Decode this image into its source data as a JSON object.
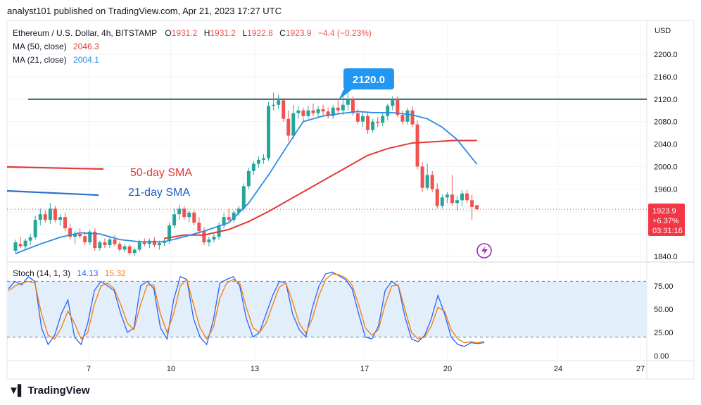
{
  "header": {
    "text": "analyst101 published on TradingView.com, Apr 21, 2023 17:27 UTC"
  },
  "legend": {
    "symbol": "Ethereum / U.S. Dollar, 4h, BITSTAMP",
    "o_label": "O",
    "o_value": "1931.2",
    "h_label": "H",
    "h_value": "1931.2",
    "l_label": "L",
    "l_value": "1922.8",
    "c_label": "C",
    "c_value": "1923.9",
    "change": "−4.4 (−0.23%)",
    "ma50_label": "MA (50, close)",
    "ma50_value": "2046.3",
    "ma21_label": "MA (21, close)",
    "ma21_value": "2004.1"
  },
  "stoch_legend": {
    "label": "Stoch (14, 1, 3)",
    "k_value": "14.13",
    "d_value": "15.32"
  },
  "price_axis": {
    "currency": "USD",
    "ticks": [
      "2200.0",
      "2160.0",
      "2120.0",
      "2080.0",
      "2040.0",
      "2000.0",
      "1960.0",
      "1840.0"
    ]
  },
  "stoch_axis": {
    "ticks": [
      "75.00",
      "50.00",
      "25.00",
      "0.00"
    ]
  },
  "time_axis": {
    "ticks": [
      "7",
      "10",
      "13",
      "17",
      "20",
      "24",
      "27"
    ]
  },
  "price_badge": {
    "price": "1923.9",
    "change": "+6.37%",
    "countdown": "03:31:16"
  },
  "callout": {
    "text": "2120.0"
  },
  "annotations": {
    "sma50": "50-day SMA",
    "sma21": "21-day SMA"
  },
  "colors": {
    "up": "#26a69a",
    "down": "#ef5350",
    "ma50": "#e53935",
    "ma21": "#2a8be6",
    "sma21_text": "#1f5fc2",
    "stoch_k": "#2962ff",
    "stoch_d": "#f57c00",
    "band": "#e3eefb",
    "callout": "#2196f3",
    "badge": "#f23645",
    "flash": "#9c27b0",
    "hline": "#0f3a3a"
  },
  "branding": {
    "logo_text": "TradingView"
  },
  "chart_data": {
    "type": "candlestick",
    "title": "Ethereum / U.S. Dollar, 4h, BITSTAMP",
    "ylabel": "USD",
    "ylim": [
      1830,
      2240
    ],
    "x_ticks": [
      "7",
      "10",
      "13",
      "17",
      "20",
      "24",
      "27"
    ],
    "horizontal_line": 2120.0,
    "last_price": 1923.9,
    "grid": true,
    "candles": [
      {
        "o": 1850,
        "h": 1870,
        "l": 1845,
        "c": 1865
      },
      {
        "o": 1862,
        "h": 1875,
        "l": 1855,
        "c": 1858
      },
      {
        "o": 1858,
        "h": 1872,
        "l": 1852,
        "c": 1868
      },
      {
        "o": 1868,
        "h": 1880,
        "l": 1860,
        "c": 1874
      },
      {
        "o": 1874,
        "h": 1912,
        "l": 1870,
        "c": 1905
      },
      {
        "o": 1905,
        "h": 1925,
        "l": 1895,
        "c": 1915
      },
      {
        "o": 1915,
        "h": 1922,
        "l": 1900,
        "c": 1905
      },
      {
        "o": 1905,
        "h": 1935,
        "l": 1898,
        "c": 1925
      },
      {
        "o": 1925,
        "h": 1930,
        "l": 1900,
        "c": 1905
      },
      {
        "o": 1905,
        "h": 1915,
        "l": 1895,
        "c": 1910
      },
      {
        "o": 1910,
        "h": 1918,
        "l": 1885,
        "c": 1890
      },
      {
        "o": 1890,
        "h": 1898,
        "l": 1870,
        "c": 1875
      },
      {
        "o": 1875,
        "h": 1885,
        "l": 1862,
        "c": 1880
      },
      {
        "o": 1880,
        "h": 1890,
        "l": 1872,
        "c": 1876
      },
      {
        "o": 1876,
        "h": 1884,
        "l": 1860,
        "c": 1865
      },
      {
        "o": 1865,
        "h": 1888,
        "l": 1860,
        "c": 1884
      },
      {
        "o": 1884,
        "h": 1890,
        "l": 1850,
        "c": 1855
      },
      {
        "o": 1855,
        "h": 1868,
        "l": 1850,
        "c": 1865
      },
      {
        "o": 1865,
        "h": 1872,
        "l": 1855,
        "c": 1860
      },
      {
        "o": 1860,
        "h": 1875,
        "l": 1855,
        "c": 1870
      },
      {
        "o": 1870,
        "h": 1878,
        "l": 1858,
        "c": 1862
      },
      {
        "o": 1862,
        "h": 1866,
        "l": 1848,
        "c": 1852
      },
      {
        "o": 1852,
        "h": 1862,
        "l": 1848,
        "c": 1858
      },
      {
        "o": 1858,
        "h": 1862,
        "l": 1842,
        "c": 1846
      },
      {
        "o": 1846,
        "h": 1856,
        "l": 1840,
        "c": 1852
      },
      {
        "o": 1852,
        "h": 1870,
        "l": 1848,
        "c": 1865
      },
      {
        "o": 1865,
        "h": 1872,
        "l": 1858,
        "c": 1862
      },
      {
        "o": 1862,
        "h": 1872,
        "l": 1855,
        "c": 1868
      },
      {
        "o": 1868,
        "h": 1874,
        "l": 1856,
        "c": 1860
      },
      {
        "o": 1860,
        "h": 1868,
        "l": 1852,
        "c": 1864
      },
      {
        "o": 1864,
        "h": 1872,
        "l": 1858,
        "c": 1868
      },
      {
        "o": 1868,
        "h": 1900,
        "l": 1862,
        "c": 1895
      },
      {
        "o": 1895,
        "h": 1925,
        "l": 1890,
        "c": 1915
      },
      {
        "o": 1915,
        "h": 1932,
        "l": 1905,
        "c": 1925
      },
      {
        "o": 1925,
        "h": 1930,
        "l": 1905,
        "c": 1910
      },
      {
        "o": 1910,
        "h": 1922,
        "l": 1900,
        "c": 1918
      },
      {
        "o": 1918,
        "h": 1922,
        "l": 1895,
        "c": 1900
      },
      {
        "o": 1900,
        "h": 1910,
        "l": 1880,
        "c": 1885
      },
      {
        "o": 1885,
        "h": 1892,
        "l": 1860,
        "c": 1865
      },
      {
        "o": 1865,
        "h": 1875,
        "l": 1858,
        "c": 1870
      },
      {
        "o": 1870,
        "h": 1880,
        "l": 1865,
        "c": 1875
      },
      {
        "o": 1875,
        "h": 1900,
        "l": 1870,
        "c": 1895
      },
      {
        "o": 1895,
        "h": 1918,
        "l": 1890,
        "c": 1910
      },
      {
        "o": 1910,
        "h": 1925,
        "l": 1900,
        "c": 1905
      },
      {
        "o": 1905,
        "h": 1922,
        "l": 1900,
        "c": 1918
      },
      {
        "o": 1918,
        "h": 1930,
        "l": 1912,
        "c": 1925
      },
      {
        "o": 1925,
        "h": 1970,
        "l": 1920,
        "c": 1965
      },
      {
        "o": 1965,
        "h": 1998,
        "l": 1960,
        "c": 1992
      },
      {
        "o": 1992,
        "h": 2010,
        "l": 1985,
        "c": 2005
      },
      {
        "o": 2005,
        "h": 2018,
        "l": 1998,
        "c": 2012
      },
      {
        "o": 2012,
        "h": 2022,
        "l": 2005,
        "c": 2015
      },
      {
        "o": 2015,
        "h": 2115,
        "l": 2010,
        "c": 2108
      },
      {
        "o": 2108,
        "h": 2132,
        "l": 2100,
        "c": 2110
      },
      {
        "o": 2110,
        "h": 2128,
        "l": 2102,
        "c": 2118
      },
      {
        "o": 2118,
        "h": 2122,
        "l": 2080,
        "c": 2085
      },
      {
        "o": 2085,
        "h": 2100,
        "l": 2045,
        "c": 2055
      },
      {
        "o": 2055,
        "h": 2110,
        "l": 2050,
        "c": 2095
      },
      {
        "o": 2095,
        "h": 2108,
        "l": 2085,
        "c": 2100
      },
      {
        "o": 2100,
        "h": 2105,
        "l": 2080,
        "c": 2090
      },
      {
        "o": 2090,
        "h": 2108,
        "l": 2085,
        "c": 2100
      },
      {
        "o": 2100,
        "h": 2112,
        "l": 2090,
        "c": 2095
      },
      {
        "o": 2095,
        "h": 2108,
        "l": 2088,
        "c": 2102
      },
      {
        "o": 2102,
        "h": 2110,
        "l": 2092,
        "c": 2098
      },
      {
        "o": 2098,
        "h": 2105,
        "l": 2085,
        "c": 2090
      },
      {
        "o": 2090,
        "h": 2110,
        "l": 2085,
        "c": 2105
      },
      {
        "o": 2105,
        "h": 2118,
        "l": 2095,
        "c": 2100
      },
      {
        "o": 2100,
        "h": 2135,
        "l": 2092,
        "c": 2110
      },
      {
        "o": 2110,
        "h": 2132,
        "l": 2100,
        "c": 2120
      },
      {
        "o": 2120,
        "h": 2125,
        "l": 2090,
        "c": 2095
      },
      {
        "o": 2095,
        "h": 2102,
        "l": 2075,
        "c": 2080
      },
      {
        "o": 2080,
        "h": 2098,
        "l": 2070,
        "c": 2090
      },
      {
        "o": 2090,
        "h": 2095,
        "l": 2058,
        "c": 2065
      },
      {
        "o": 2065,
        "h": 2085,
        "l": 2060,
        "c": 2080
      },
      {
        "o": 2080,
        "h": 2088,
        "l": 2070,
        "c": 2078
      },
      {
        "o": 2078,
        "h": 2095,
        "l": 2072,
        "c": 2090
      },
      {
        "o": 2090,
        "h": 2112,
        "l": 2082,
        "c": 2108
      },
      {
        "o": 2108,
        "h": 2125,
        "l": 2100,
        "c": 2120
      },
      {
        "o": 2120,
        "h": 2125,
        "l": 2088,
        "c": 2092
      },
      {
        "o": 2092,
        "h": 2100,
        "l": 2075,
        "c": 2080
      },
      {
        "o": 2080,
        "h": 2105,
        "l": 2075,
        "c": 2100
      },
      {
        "o": 2100,
        "h": 2108,
        "l": 2070,
        "c": 2075
      },
      {
        "o": 2075,
        "h": 2082,
        "l": 1995,
        "c": 2000
      },
      {
        "o": 2000,
        "h": 2008,
        "l": 1955,
        "c": 1962
      },
      {
        "o": 1962,
        "h": 2005,
        "l": 1958,
        "c": 1985
      },
      {
        "o": 1985,
        "h": 1992,
        "l": 1955,
        "c": 1960
      },
      {
        "o": 1960,
        "h": 1970,
        "l": 1925,
        "c": 1930
      },
      {
        "o": 1930,
        "h": 1950,
        "l": 1925,
        "c": 1945
      },
      {
        "o": 1945,
        "h": 1955,
        "l": 1935,
        "c": 1950
      },
      {
        "o": 1950,
        "h": 1985,
        "l": 1930,
        "c": 1935
      },
      {
        "o": 1935,
        "h": 1948,
        "l": 1922,
        "c": 1940
      },
      {
        "o": 1940,
        "h": 1958,
        "l": 1930,
        "c": 1952
      },
      {
        "o": 1952,
        "h": 1958,
        "l": 1935,
        "c": 1940
      },
      {
        "o": 1940,
        "h": 1950,
        "l": 1905,
        "c": 1928
      },
      {
        "o": 1931.2,
        "h": 1931.2,
        "l": 1922.8,
        "c": 1923.9
      }
    ],
    "series": [
      {
        "name": "MA (50, close)",
        "type": "line",
        "values": [
          [
            0,
            1948
          ],
          [
            10,
            1945
          ],
          [
            16,
            1938
          ],
          [
            26,
            1930
          ],
          [
            30,
            1872
          ],
          [
            34,
            1878
          ],
          [
            38,
            1878
          ],
          [
            43,
            1888
          ],
          [
            47,
            1902
          ],
          [
            51,
            1920
          ],
          [
            55,
            1940
          ],
          [
            59,
            1960
          ],
          [
            63,
            1980
          ],
          [
            67,
            2000
          ],
          [
            71,
            2020
          ],
          [
            75,
            2032
          ],
          [
            80,
            2042
          ],
          [
            84,
            2044
          ],
          [
            88,
            2046.3
          ],
          [
            93,
            2046.3
          ]
        ]
      },
      {
        "name": "MA (21, close)",
        "type": "line",
        "values": [
          [
            0,
            1960
          ],
          [
            10,
            1957
          ],
          [
            17,
            1955
          ],
          [
            0,
            1845
          ],
          [
            5,
            1862
          ],
          [
            9,
            1874
          ],
          [
            13,
            1882
          ],
          [
            17,
            1880
          ],
          [
            21,
            1870
          ],
          [
            25,
            1866
          ],
          [
            30,
            1866
          ],
          [
            34,
            1875
          ],
          [
            38,
            1885
          ],
          [
            43,
            1900
          ],
          [
            47,
            1935
          ],
          [
            51,
            1985
          ],
          [
            55,
            2040
          ],
          [
            58,
            2080
          ],
          [
            62,
            2090
          ],
          [
            66,
            2095
          ],
          [
            69,
            2098
          ],
          [
            72,
            2096
          ],
          [
            76,
            2096
          ],
          [
            80,
            2092
          ],
          [
            83,
            2085
          ],
          [
            86,
            2070
          ],
          [
            89,
            2048
          ],
          [
            93,
            2004.1
          ]
        ]
      },
      {
        "name": "Stoch %K",
        "panel": "stoch",
        "values": [
          72,
          80,
          76,
          85,
          80,
          30,
          12,
          22,
          45,
          60,
          20,
          12,
          35,
          70,
          80,
          75,
          70,
          45,
          25,
          30,
          75,
          80,
          72,
          30,
          18,
          60,
          85,
          82,
          40,
          20,
          12,
          38,
          78,
          82,
          85,
          75,
          40,
          20,
          25,
          45,
          65,
          80,
          78,
          45,
          28,
          20,
          52,
          75,
          88,
          90,
          86,
          82,
          72,
          45,
          20,
          18,
          32,
          70,
          80,
          75,
          42,
          18,
          15,
          22,
          40,
          65,
          45,
          20,
          12,
          10,
          14,
          13,
          14.13
        ]
      },
      {
        "name": "Stoch %D",
        "panel": "stoch",
        "values": [
          70,
          75,
          78,
          80,
          78,
          45,
          22,
          18,
          30,
          48,
          35,
          18,
          25,
          55,
          75,
          78,
          72,
          55,
          35,
          28,
          55,
          76,
          76,
          45,
          25,
          45,
          75,
          82,
          55,
          30,
          18,
          30,
          62,
          78,
          82,
          78,
          52,
          30,
          25,
          35,
          55,
          74,
          78,
          58,
          35,
          24,
          40,
          65,
          82,
          88,
          87,
          84,
          76,
          55,
          30,
          22,
          28,
          55,
          75,
          76,
          50,
          25,
          18,
          20,
          32,
          52,
          48,
          28,
          18,
          14,
          15,
          14,
          15.32
        ]
      }
    ],
    "stoch_ylim": [
      0,
      100
    ],
    "stoch_levels": [
      80,
      20
    ]
  }
}
